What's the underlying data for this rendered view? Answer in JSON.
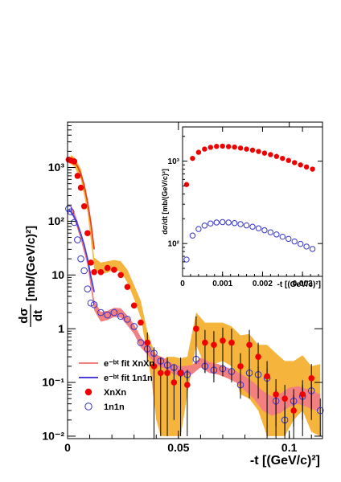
{
  "chart_data": [
    {
      "type": "scatter",
      "xlabel": "-t [(GeV/c)²]",
      "ylabel_num": "dσ",
      "ylabel_den": "dt",
      "ylabel_unit": "[mb/(GeV/c)²]",
      "xlim": [
        0,
        0.115
      ],
      "ylim": [
        0.009,
        7000
      ],
      "y_scale": "log",
      "x_ticks": [
        0,
        0.05,
        0.1
      ],
      "x_tick_labels": [
        "0",
        "0.05",
        "0.1"
      ],
      "y_ticks": [
        0.01,
        0.1,
        1,
        10,
        100,
        1000
      ],
      "y_tick_labels": [
        "10⁻²",
        "10⁻¹",
        "1",
        "10",
        "10²",
        "10³"
      ],
      "legend_position": "bottom-left",
      "legend": [
        {
          "label": "e⁻ᵇᵗ fit XnXn",
          "kind": "line",
          "color": "#f28080"
        },
        {
          "label": "e⁻ᵇᵗ fit 1n1n",
          "kind": "line",
          "color": "#4a40d8"
        },
        {
          "label": "XnXn",
          "kind": "filled-marker",
          "color": "#ee0000"
        },
        {
          "label": "1n1n",
          "kind": "open-marker",
          "color": "#3333cc"
        }
      ],
      "band_xnxn": {
        "color": "#f5b43c",
        "x": [
          0.0015,
          0.003,
          0.006,
          0.009,
          0.012,
          0.015,
          0.018,
          0.021,
          0.024,
          0.027,
          0.03,
          0.033,
          0.036,
          0.038,
          0.04,
          0.042,
          0.045,
          0.048,
          0.051,
          0.054,
          0.058,
          0.062,
          0.066,
          0.07,
          0.074,
          0.078,
          0.082,
          0.086,
          0.09,
          0.094,
          0.098,
          0.102,
          0.106,
          0.11,
          0.114
        ],
        "lo": [
          1150,
          1050,
          600,
          150,
          13,
          10.5,
          11,
          12.5,
          11.5,
          7.2,
          3.6,
          1.6,
          0.32,
          0.1,
          0.02,
          0.01,
          0.01,
          0.01,
          0.01,
          0.06,
          0.5,
          0.2,
          0.22,
          0.25,
          0.2,
          0.06,
          0.05,
          0.03,
          0.01,
          0.01,
          0.01,
          0.02,
          0.03,
          0.012,
          0.01
        ],
        "hi": [
          1700,
          1550,
          950,
          260,
          21,
          17,
          18,
          19,
          18,
          12.5,
          6.5,
          3.3,
          0.9,
          0.5,
          0.32,
          0.25,
          0.3,
          0.3,
          0.28,
          0.3,
          2.0,
          1.3,
          1.3,
          1.3,
          1.1,
          0.75,
          0.8,
          0.5,
          0.5,
          0.35,
          0.25,
          0.25,
          0.32,
          0.2,
          0.22
        ]
      },
      "band_1n1n": {
        "color": "#f28080",
        "x": [
          0.0015,
          0.003,
          0.006,
          0.009,
          0.012,
          0.015,
          0.018,
          0.021,
          0.024,
          0.027,
          0.03,
          0.033,
          0.036,
          0.04,
          0.044,
          0.048,
          0.052,
          0.056,
          0.06,
          0.064,
          0.068,
          0.072,
          0.076,
          0.08,
          0.084,
          0.088,
          0.092,
          0.096,
          0.1,
          0.104,
          0.108,
          0.112,
          0.114
        ],
        "lo": [
          140,
          110,
          45,
          15,
          2.2,
          1.35,
          1.45,
          1.65,
          1.6,
          1.15,
          0.8,
          0.45,
          0.33,
          0.21,
          0.18,
          0.14,
          0.13,
          0.14,
          0.19,
          0.15,
          0.14,
          0.12,
          0.1,
          0.07,
          0.05,
          0.03,
          0.024,
          0.027,
          0.035,
          0.04,
          0.035,
          0.03,
          0.03
        ],
        "hi": [
          200,
          150,
          65,
          22,
          3.4,
          2.05,
          2.15,
          2.45,
          2.4,
          1.75,
          1.2,
          0.7,
          0.5,
          0.33,
          0.28,
          0.21,
          0.2,
          0.21,
          0.29,
          0.24,
          0.22,
          0.19,
          0.16,
          0.13,
          0.1,
          0.07,
          0.055,
          0.062,
          0.08,
          0.085,
          0.075,
          0.065,
          0.06
        ]
      },
      "fit_xnxn": {
        "color": "#e84020",
        "x": [
          0.0005,
          0.0015,
          0.003,
          0.0045,
          0.006,
          0.0075,
          0.009,
          0.0105,
          0.012
        ],
        "y": [
          1450,
          1380,
          1250,
          1050,
          760,
          470,
          230,
          95,
          30
        ]
      },
      "fit_1n1n": {
        "color": "#4a40d8",
        "x": [
          0.0005,
          0.0015,
          0.003,
          0.0045,
          0.006,
          0.0075,
          0.009,
          0.0105,
          0.012
        ],
        "y": [
          165,
          150,
          120,
          86,
          58,
          36,
          20,
          9.5,
          4.8
        ]
      },
      "series": [
        {
          "name": "XnXn",
          "marker": "filled-circle",
          "color": "#ee0000",
          "x": [
            0.0005,
            0.0015,
            0.003,
            0.0045,
            0.006,
            0.0075,
            0.009,
            0.0105,
            0.012,
            0.015,
            0.018,
            0.021,
            0.024,
            0.027,
            0.03,
            0.033,
            0.036,
            0.039,
            0.042,
            0.045,
            0.048,
            0.051,
            0.054,
            0.058,
            0.062,
            0.066,
            0.07,
            0.074,
            0.078,
            0.082,
            0.086,
            0.09,
            0.094,
            0.098,
            0.102,
            0.106,
            0.11
          ],
          "y": [
            1400,
            1350,
            1300,
            700,
            420,
            190,
            60,
            17,
            11.3,
            11.3,
            13.5,
            12.5,
            10,
            6,
            2.7,
            1.3,
            0.55,
            0.2,
            0.15,
            0.15,
            0.1,
            0.15,
            0.09,
            1.0,
            0.55,
            0.5,
            0.6,
            0.55,
            0.2,
            0.5,
            0.3,
            0.13,
            0.06,
            0.05,
            0.03,
            0.06,
            0.12
          ],
          "err": [
            0,
            0,
            0,
            0,
            0,
            0,
            0,
            0,
            0,
            0,
            0,
            0,
            0,
            0,
            0,
            0,
            0.3,
            0.25,
            0.14,
            0.14,
            0.08,
            0.14,
            0.08,
            0.7,
            0.4,
            0.4,
            0.45,
            0.45,
            0.15,
            0.45,
            0.25,
            0.12,
            0.055,
            0.04,
            0.028,
            0.05,
            0.1
          ]
        },
        {
          "name": "1n1n",
          "marker": "open-circle",
          "color": "#3333cc",
          "x": [
            0.0005,
            0.0015,
            0.003,
            0.0045,
            0.006,
            0.0075,
            0.009,
            0.0105,
            0.012,
            0.015,
            0.018,
            0.021,
            0.024,
            0.027,
            0.03,
            0.033,
            0.036,
            0.039,
            0.042,
            0.045,
            0.048,
            0.051,
            0.054,
            0.058,
            0.062,
            0.066,
            0.07,
            0.074,
            0.078,
            0.082,
            0.086,
            0.09,
            0.094,
            0.098,
            0.102,
            0.106,
            0.11,
            0.114
          ],
          "y": [
            170,
            150,
            95,
            45,
            20,
            12,
            5.5,
            3.0,
            2.8,
            2.0,
            1.8,
            2.0,
            1.7,
            1.5,
            1.1,
            0.55,
            0.42,
            0.35,
            0.25,
            0.21,
            0.19,
            0.15,
            0.14,
            0.27,
            0.2,
            0.17,
            0.18,
            0.16,
            0.09,
            0.15,
            0.14,
            0.12,
            0.045,
            0.02,
            0.045,
            0.055,
            0.07,
            0.03
          ],
          "err": [
            0,
            0,
            0,
            0,
            0,
            0,
            0,
            0,
            0,
            0,
            0,
            0,
            0,
            0,
            0,
            0,
            0,
            0.04,
            0.035,
            0.03,
            0.03,
            0.03,
            0.03,
            0.05,
            0.05,
            0.05,
            0.05,
            0.05,
            0.04,
            0.05,
            0.06,
            0.06,
            0.03,
            0.015,
            0.03,
            0.035,
            0.04,
            0.02
          ]
        }
      ]
    },
    {
      "type": "scatter",
      "role": "inset",
      "xlabel": "-t [(GeV/c)²]",
      "ylabel": "dσ/dt [mb/(GeV/c)²]",
      "xlim": [
        0,
        0.0035
      ],
      "ylim": [
        40,
        2600
      ],
      "y_scale": "log",
      "x_ticks": [
        0,
        0.001,
        0.002,
        0.003
      ],
      "x_tick_labels": [
        "0",
        "0.001",
        "0.002",
        "0.003"
      ],
      "y_ticks": [
        100,
        1000
      ],
      "y_tick_labels": [
        "10²",
        "10³"
      ],
      "series": [
        {
          "name": "XnXn",
          "marker": "filled-circle",
          "color": "#ee0000",
          "x": [
            0.0001,
            0.00025,
            0.0004,
            0.00055,
            0.0007,
            0.00085,
            0.001,
            0.00115,
            0.0013,
            0.00145,
            0.0016,
            0.00175,
            0.0019,
            0.00205,
            0.0022,
            0.00235,
            0.0025,
            0.00265,
            0.0028,
            0.00295,
            0.0031,
            0.00325
          ],
          "y": [
            520,
            1080,
            1280,
            1400,
            1470,
            1510,
            1520,
            1500,
            1480,
            1440,
            1400,
            1360,
            1310,
            1250,
            1200,
            1140,
            1080,
            1020,
            960,
            900,
            850,
            800
          ]
        },
        {
          "name": "1n1n",
          "marker": "open-circle",
          "color": "#3333cc",
          "x": [
            0.0001,
            0.00025,
            0.0004,
            0.00055,
            0.0007,
            0.00085,
            0.001,
            0.00115,
            0.0013,
            0.00145,
            0.0016,
            0.00175,
            0.0019,
            0.00205,
            0.0022,
            0.00235,
            0.0025,
            0.00265,
            0.0028,
            0.00295,
            0.0031,
            0.00325
          ],
          "y": [
            64,
            125,
            150,
            165,
            175,
            180,
            182,
            180,
            177,
            172,
            166,
            160,
            153,
            145,
            137,
            129,
            121,
            114,
            106,
            99,
            92,
            86
          ]
        }
      ]
    }
  ]
}
